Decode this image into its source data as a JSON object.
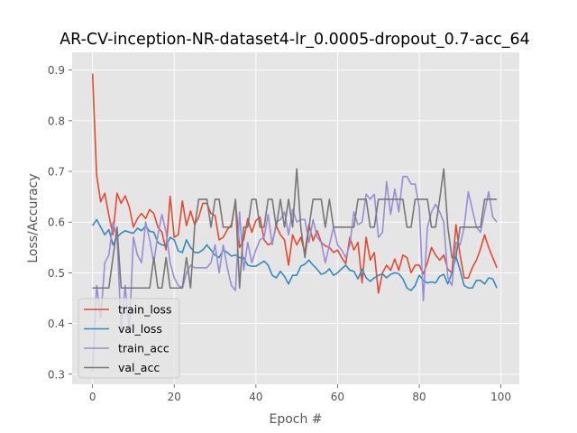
{
  "chart_data": {
    "type": "line",
    "title": "AR-CV-inception-NR-dataset4-lr_0.0005-dropout_0.7-acc_64",
    "xlabel": "Epoch #",
    "ylabel": "Loss/Accuracy",
    "xlim": [
      -5,
      104.5
    ],
    "ylim": [
      0.28,
      0.935
    ],
    "x_ticks": [
      0,
      20,
      40,
      60,
      80,
      100
    ],
    "y_ticks": [
      0.3,
      0.4,
      0.5,
      0.6,
      0.7,
      0.8,
      0.9
    ],
    "grid": true,
    "legend_position": "lower-left",
    "series": [
      {
        "name": "train_loss",
        "color": "#E24A33",
        "values": [
          0.893,
          0.693,
          0.64,
          0.657,
          0.613,
          0.575,
          0.657,
          0.637,
          0.652,
          0.63,
          0.59,
          0.607,
          0.617,
          0.607,
          0.625,
          0.617,
          0.59,
          0.58,
          0.545,
          0.651,
          0.57,
          0.575,
          0.642,
          0.593,
          0.622,
          0.595,
          0.61,
          0.637,
          0.637,
          0.617,
          0.613,
          0.565,
          0.57,
          0.585,
          0.595,
          0.64,
          0.55,
          0.565,
          0.607,
          0.58,
          0.603,
          0.61,
          0.565,
          0.555,
          0.56,
          0.593,
          0.575,
          0.565,
          0.515,
          0.575,
          0.555,
          0.57,
          0.54,
          0.595,
          0.563,
          0.583,
          0.56,
          0.553,
          0.55,
          0.54,
          0.545,
          0.53,
          0.518,
          0.57,
          0.545,
          0.56,
          0.48,
          0.57,
          0.525,
          0.54,
          0.46,
          0.5,
          0.515,
          0.505,
          0.527,
          0.505,
          0.535,
          0.53,
          0.5,
          0.515,
          0.515,
          0.498,
          0.52,
          0.55,
          0.535,
          0.525,
          0.535,
          0.507,
          0.5,
          0.595,
          0.535,
          0.49,
          0.49,
          0.51,
          0.525,
          0.547,
          0.575,
          0.55,
          0.53,
          0.51
        ]
      },
      {
        "name": "val_loss",
        "color": "#348ABD",
        "values": [
          0.593,
          0.605,
          0.59,
          0.575,
          0.585,
          0.555,
          0.57,
          0.578,
          0.583,
          0.58,
          0.578,
          0.588,
          0.583,
          0.592,
          0.582,
          0.58,
          0.56,
          0.555,
          0.553,
          0.57,
          0.565,
          0.543,
          0.54,
          0.565,
          0.55,
          0.54,
          0.54,
          0.545,
          0.555,
          0.545,
          0.535,
          0.53,
          0.545,
          0.54,
          0.533,
          0.535,
          0.53,
          0.53,
          0.515,
          0.513,
          0.513,
          0.518,
          0.523,
          0.515,
          0.495,
          0.49,
          0.503,
          0.493,
          0.478,
          0.495,
          0.495,
          0.513,
          0.517,
          0.525,
          0.515,
          0.507,
          0.497,
          0.5,
          0.508,
          0.495,
          0.5,
          0.508,
          0.515,
          0.505,
          0.503,
          0.488,
          0.507,
          0.49,
          0.483,
          0.49,
          0.495,
          0.498,
          0.49,
          0.497,
          0.5,
          0.498,
          0.488,
          0.47,
          0.465,
          0.475,
          0.495,
          0.485,
          0.48,
          0.482,
          0.48,
          0.493,
          0.497,
          0.478,
          0.5,
          0.532,
          0.505,
          0.475,
          0.47,
          0.47,
          0.485,
          0.485,
          0.478,
          0.49,
          0.488,
          0.47
        ]
      },
      {
        "name": "train_acc",
        "color": "#988ED5",
        "values": [
          0.305,
          0.475,
          0.41,
          0.52,
          0.535,
          0.6,
          0.57,
          0.39,
          0.475,
          0.38,
          0.57,
          0.535,
          0.52,
          0.6,
          0.565,
          0.52,
          0.575,
          0.615,
          0.58,
          0.52,
          0.49,
          0.475,
          0.47,
          0.5,
          0.515,
          0.51,
          0.51,
          0.51,
          0.51,
          0.52,
          0.555,
          0.5,
          0.555,
          0.51,
          0.475,
          0.465,
          0.62,
          0.505,
          0.56,
          0.52,
          0.545,
          0.565,
          0.57,
          0.615,
          0.555,
          0.6,
          0.605,
          0.62,
          0.575,
          0.625,
          0.6,
          0.605,
          0.605,
          0.56,
          0.605,
          0.57,
          0.56,
          0.52,
          0.555,
          0.59,
          0.555,
          0.545,
          0.53,
          0.555,
          0.62,
          0.595,
          0.6,
          0.655,
          0.645,
          0.655,
          0.57,
          0.58,
          0.68,
          0.615,
          0.665,
          0.62,
          0.69,
          0.69,
          0.675,
          0.675,
          0.63,
          0.445,
          0.59,
          0.62,
          0.635,
          0.62,
          0.6,
          0.49,
          0.475,
          0.56,
          0.555,
          0.59,
          0.66,
          0.625,
          0.59,
          0.58,
          0.62,
          0.66,
          0.61,
          0.6
        ]
      },
      {
        "name": "val_acc",
        "color": "#777777",
        "values": [
          0.47,
          0.47,
          0.47,
          0.47,
          0.47,
          0.53,
          0.59,
          0.47,
          0.47,
          0.47,
          0.47,
          0.47,
          0.47,
          0.47,
          0.47,
          0.53,
          0.47,
          0.47,
          0.53,
          0.47,
          0.47,
          0.47,
          0.47,
          0.53,
          0.47,
          0.59,
          0.645,
          0.645,
          0.645,
          0.59,
          0.645,
          0.645,
          0.59,
          0.59,
          0.59,
          0.645,
          0.47,
          0.59,
          0.59,
          0.645,
          0.645,
          0.59,
          0.59,
          0.645,
          0.645,
          0.59,
          0.645,
          0.59,
          0.645,
          0.59,
          0.705,
          0.59,
          0.53,
          0.59,
          0.645,
          0.645,
          0.645,
          0.59,
          0.645,
          0.59,
          0.59,
          0.59,
          0.59,
          0.59,
          0.59,
          0.645,
          0.645,
          0.645,
          0.59,
          0.59,
          0.645,
          0.645,
          0.645,
          0.645,
          0.645,
          0.645,
          0.645,
          0.59,
          0.59,
          0.645,
          0.645,
          0.645,
          0.645,
          0.59,
          0.59,
          0.645,
          0.705,
          0.59,
          0.53,
          0.53,
          0.59,
          0.59,
          0.59,
          0.59,
          0.59,
          0.59,
          0.645,
          0.645,
          0.645,
          0.645
        ]
      }
    ]
  }
}
